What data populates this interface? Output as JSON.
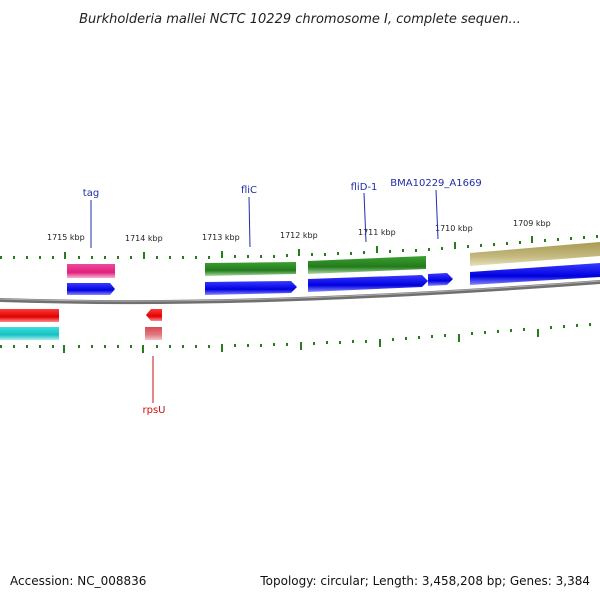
{
  "title": "Burkholderia mallei NCTC 10229 chromosome I, complete sequen...",
  "accession_text": "Accession: NC_008836",
  "topology_text": "Topology: circular; Length: 3,458,208 bp; Genes: 3,384",
  "colors": {
    "tick": "#2a7a1f",
    "backbone": "#808080",
    "forward_cds": "#0000ee",
    "reverse_cds": "#ee0000",
    "gene_label_forward": "#1f2ea8",
    "gene_label_reverse": "#cc1111",
    "tag_gene": "#e8308c",
    "flagellin": "#2a8a22",
    "olive_feature": "#bdb276",
    "teal_feature": "#22cccc",
    "pink_feature": "#e07a80"
  },
  "scale_labels": [
    "1715 kbp",
    "1714 kbp",
    "1713 kbp",
    "1712 kbp",
    "1711 kbp",
    "1710 kbp",
    "1709 kbp"
  ],
  "gene_labels": [
    "tag",
    "fliC",
    "fliD-1",
    "BMA10229_A1669",
    "rpsU"
  ]
}
